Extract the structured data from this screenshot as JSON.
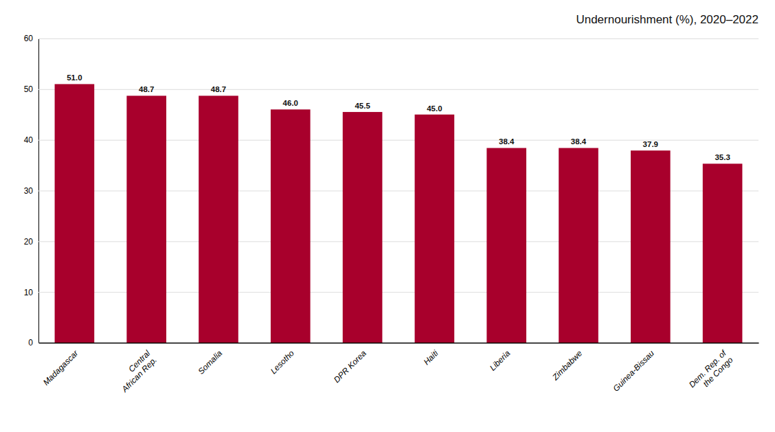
{
  "chart_data": {
    "type": "bar",
    "title": "Undernourishment (%), 2020–2022",
    "categories": [
      "Madagascar",
      "Central\nAfrican Rep.",
      "Somalia",
      "Lesotho",
      "DPR Korea",
      "Haiti",
      "Liberia",
      "Zimbabwe",
      "Guinea-Bissau",
      "Dem. Rep. of\nthe Congo"
    ],
    "values": [
      51.0,
      48.7,
      48.7,
      46.0,
      45.5,
      45.0,
      38.4,
      38.4,
      37.9,
      35.3
    ],
    "value_labels": [
      "51.0",
      "48.7",
      "48.7",
      "46.0",
      "45.5",
      "45.0",
      "38.4",
      "38.4",
      "37.9",
      "35.3"
    ],
    "color": "#A8002C",
    "ylim": [
      0,
      60
    ],
    "yticks": [
      0,
      10,
      20,
      30,
      40,
      50,
      60
    ],
    "grid": true,
    "data_labels": true
  }
}
